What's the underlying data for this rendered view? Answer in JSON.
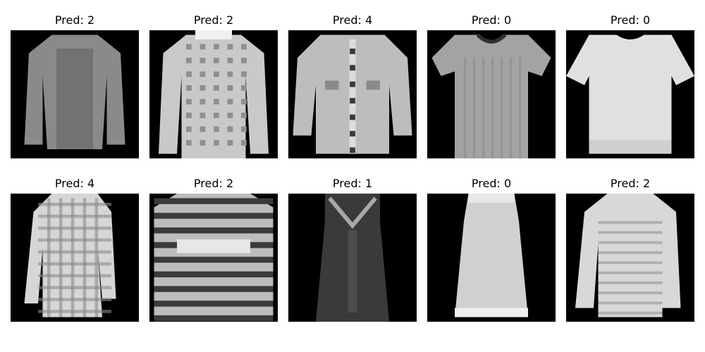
{
  "figure": {
    "panels": [
      {
        "caption": "Pred: 2",
        "item": "long-sleeve-top-dark",
        "shade": "#8a8a8a",
        "accent": "#5a5a5a"
      },
      {
        "caption": "Pred: 2",
        "item": "knit-sweater-light",
        "shade": "#c9c9c9",
        "accent": "#8f8f8f"
      },
      {
        "caption": "Pred: 4",
        "item": "button-cardigan",
        "shade": "#bdbdbd",
        "accent": "#3a3a3a"
      },
      {
        "caption": "Pred: 0",
        "item": "t-shirt-gray",
        "shade": "#a3a3a3",
        "accent": "#7c7c7c"
      },
      {
        "caption": "Pred: 0",
        "item": "t-shirt-white",
        "shade": "#e0e0e0",
        "accent": "#cfcfcf"
      },
      {
        "caption": "Pred: 4",
        "item": "checked-shirt",
        "shade": "#d6d6d6",
        "accent": "#8a8a8a"
      },
      {
        "caption": "Pred: 2",
        "item": "striped-sweater",
        "shade": "#bcbcbc",
        "accent": "#3b3b3b"
      },
      {
        "caption": "Pred: 1",
        "item": "dark-dress",
        "shade": "#3a3a3a",
        "accent": "#a8a8a8"
      },
      {
        "caption": "Pred: 0",
        "item": "sleeveless-top",
        "shade": "#d0d0d0",
        "accent": "#e8e8e8"
      },
      {
        "caption": "Pred: 2",
        "item": "long-sleeve-top-light",
        "shade": "#d8d8d8",
        "accent": "#b0b0b0"
      }
    ]
  }
}
